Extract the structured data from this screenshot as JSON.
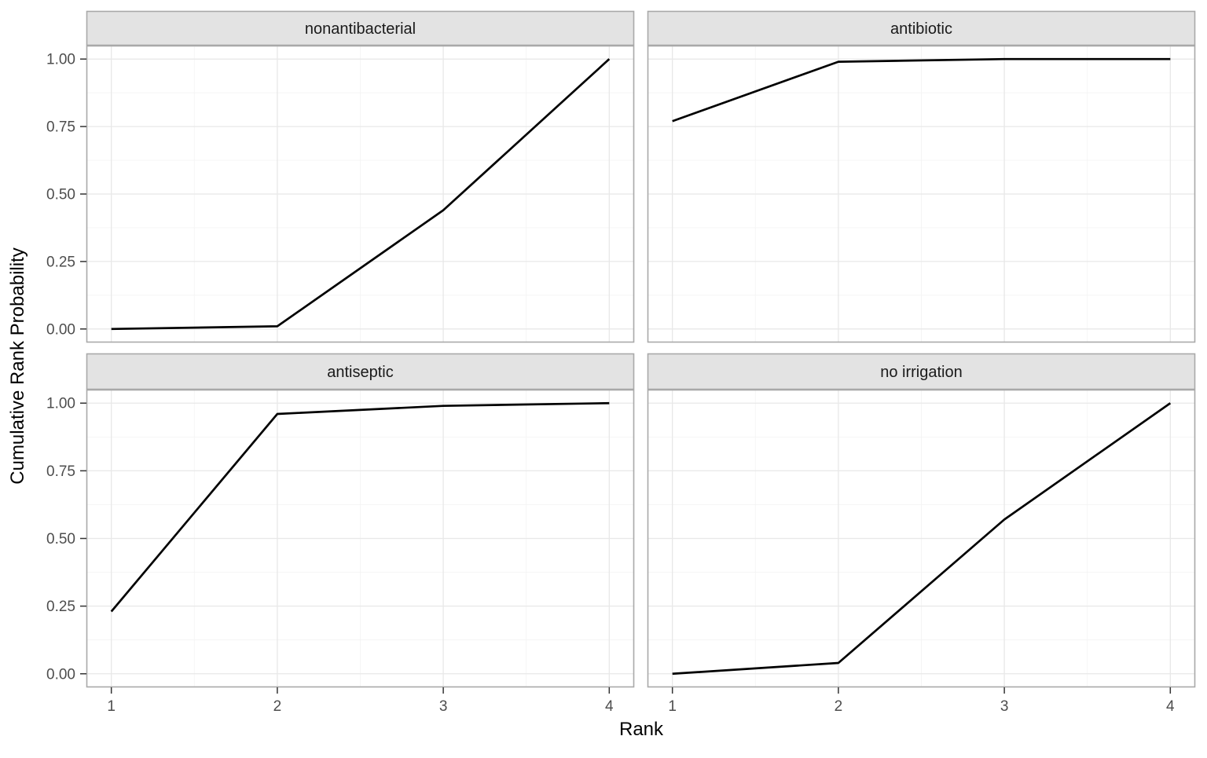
{
  "chart_data": {
    "type": "line",
    "title": "",
    "xlabel": "Rank",
    "ylabel": "Cumulative Rank Probability",
    "legend": "none",
    "grid": true,
    "facet_layout": "2x2",
    "xlim": [
      1,
      4
    ],
    "ylim": [
      0,
      1
    ],
    "x_ticks": [
      "1",
      "2",
      "3",
      "4"
    ],
    "x_tick_values": [
      1,
      2,
      3,
      4
    ],
    "y_ticks": [
      "0.00",
      "0.25",
      "0.50",
      "0.75",
      "1.00"
    ],
    "y_tick_values": [
      0.0,
      0.25,
      0.5,
      0.75,
      1.0
    ],
    "x_minor_values": [
      1.5,
      2.5,
      3.5
    ],
    "y_minor_values": [
      0.125,
      0.375,
      0.625,
      0.875
    ],
    "facets": [
      {
        "title": "nonantibacterial",
        "x": [
          1,
          2,
          3,
          4
        ],
        "y": [
          0.0,
          0.01,
          0.44,
          1.0
        ]
      },
      {
        "title": "antibiotic",
        "x": [
          1,
          2,
          3,
          4
        ],
        "y": [
          0.77,
          0.99,
          1.0,
          1.0
        ]
      },
      {
        "title": "antiseptic",
        "x": [
          1,
          2,
          3,
          4
        ],
        "y": [
          0.23,
          0.96,
          0.99,
          1.0
        ]
      },
      {
        "title": "no irrigation",
        "x": [
          1,
          2,
          3,
          4
        ],
        "y": [
          0.0,
          0.04,
          0.57,
          1.0
        ]
      }
    ],
    "style": {
      "line_color": "#000000",
      "line_width": 2.7,
      "panel_fill": "#FFFFFF",
      "panel_border": "#A9A9A9",
      "grid_major": "#E8E8E8",
      "grid_minor": "#F4F4F4",
      "strip_fill": "#E3E3E3",
      "strip_border": "#A9A9A9",
      "tick_mark_color": "#333333",
      "tick_label_color": "#4D4D4D",
      "axis_title_color": "#000000"
    }
  }
}
